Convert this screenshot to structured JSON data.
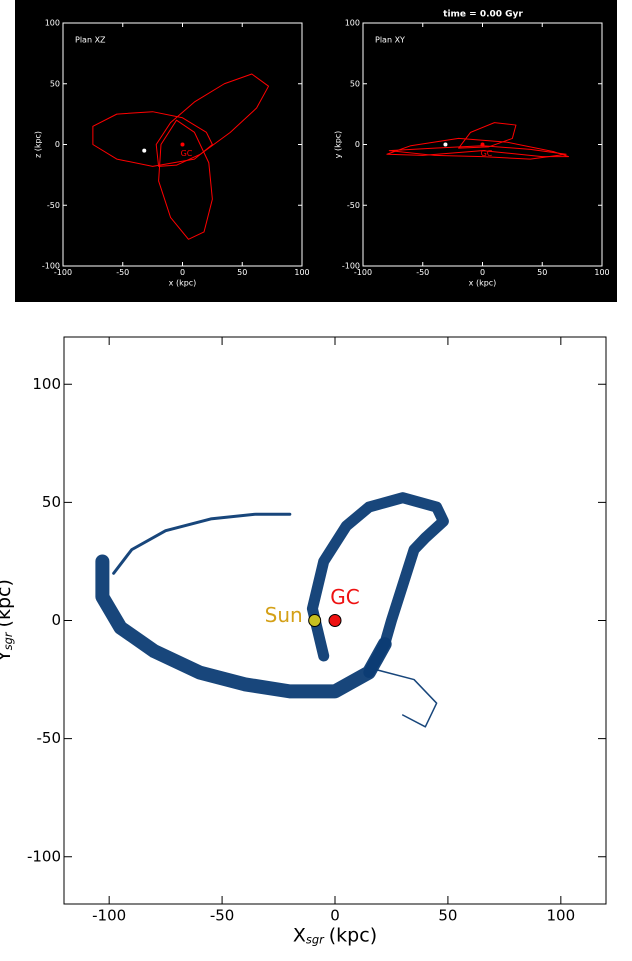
{
  "chart_data": [
    {
      "type": "line",
      "title": "Plan XZ",
      "xlabel": "x (kpc)",
      "ylabel": "z (kpc)",
      "xlim": [
        -100,
        100
      ],
      "ylim": [
        -100,
        100
      ],
      "xticks": [
        -100,
        -50,
        0,
        50,
        100
      ],
      "yticks": [
        -100,
        -50,
        0,
        50,
        100
      ],
      "series": [
        {
          "color": "#ff0000",
          "x": [
            -25,
            -55,
            -75,
            -75,
            -55,
            -25,
            0,
            20,
            25,
            10,
            -25
          ],
          "y": [
            -18,
            -12,
            0,
            15,
            25,
            27,
            22,
            10,
            0,
            -12,
            -18
          ]
        },
        {
          "color": "#ff0000",
          "x": [
            -20,
            -22,
            -10,
            10,
            35,
            58,
            72,
            62,
            40,
            15,
            -5,
            -20
          ],
          "y": [
            -18,
            0,
            18,
            35,
            50,
            58,
            48,
            30,
            10,
            -8,
            -17,
            -18
          ]
        },
        {
          "color": "#ff0000",
          "x": [
            -18,
            -20,
            -10,
            5,
            18,
            25,
            22,
            10,
            -5,
            -18
          ],
          "y": [
            0,
            -30,
            -60,
            -78,
            -72,
            -45,
            -15,
            10,
            20,
            0
          ]
        }
      ],
      "markers": [
        {
          "x": -32,
          "y": -5,
          "color": "#ffffff"
        },
        {
          "name": "GC",
          "x": 0,
          "y": 0,
          "color": "#ff0000"
        }
      ]
    },
    {
      "type": "line",
      "title": "Plan XY",
      "annotation": "time = 0.00 Gyr",
      "xlabel": "x (kpc)",
      "ylabel": "y (kpc)",
      "xlim": [
        -100,
        100
      ],
      "ylim": [
        -100,
        100
      ],
      "xticks": [
        -100,
        -50,
        0,
        50,
        100
      ],
      "yticks": [
        -100,
        -50,
        0,
        50,
        100
      ],
      "series": [
        {
          "color": "#ff0000",
          "x": [
            -80,
            -60,
            -20,
            20,
            60,
            72,
            50,
            0,
            -50,
            -80
          ],
          "y": [
            -8,
            -1,
            5,
            2,
            -6,
            -10,
            -10,
            -5,
            -9,
            -8
          ]
        },
        {
          "color": "#ff0000",
          "x": [
            -78,
            -40,
            0,
            40,
            70,
            40,
            0,
            -40,
            -78
          ],
          "y": [
            -5,
            -3,
            -1,
            -4,
            -8,
            -12,
            -10,
            -9,
            -5
          ]
        },
        {
          "color": "#ff0000",
          "x": [
            -20,
            -10,
            10,
            28,
            25,
            5,
            -20
          ],
          "y": [
            -3,
            10,
            18,
            16,
            5,
            -2,
            -3
          ]
        }
      ],
      "markers": [
        {
          "x": -31,
          "y": 0,
          "color": "#ffffff"
        },
        {
          "name": "GC",
          "x": 0,
          "y": 0,
          "color": "#ff0000"
        }
      ]
    },
    {
      "type": "scatter",
      "xlabel": [
        "X",
        "sgr",
        "(kpc)"
      ],
      "ylabel": [
        "Y",
        "sgr",
        "(kpc)"
      ],
      "xlim": [
        -120,
        120
      ],
      "ylim": [
        -120,
        120
      ],
      "xticks": [
        -100,
        -50,
        0,
        50,
        100
      ],
      "yticks": [
        -100,
        -50,
        0,
        50,
        100
      ],
      "series": [
        {
          "color": "#0c3c74",
          "width": 14,
          "x": [
            -103,
            -103,
            -95,
            -80,
            -60,
            -40,
            -20,
            0,
            15,
            22
          ],
          "y": [
            25,
            10,
            -3,
            -13,
            -22,
            -27,
            -30,
            -30,
            -22,
            -10
          ]
        },
        {
          "color": "#0c3c74",
          "width": 3,
          "x": [
            -98,
            -90,
            -75,
            -55,
            -35,
            -20
          ],
          "y": [
            20,
            30,
            38,
            43,
            45,
            45
          ]
        },
        {
          "color": "#0c3c74",
          "width": 11,
          "x": [
            -5,
            -10,
            -5,
            5,
            15,
            30,
            45,
            48,
            40,
            35,
            30,
            25,
            22,
            15
          ],
          "y": [
            -15,
            5,
            25,
            40,
            48,
            52,
            48,
            42,
            35,
            30,
            15,
            0,
            -10,
            -22
          ]
        },
        {
          "color": "#0c3c74",
          "width": 1.5,
          "x": [
            15,
            35,
            45,
            40,
            30
          ],
          "y": [
            -20,
            -25,
            -35,
            -45,
            -40
          ]
        }
      ],
      "markers": [
        {
          "name": "Sun",
          "x": -9,
          "y": 0,
          "color": "#c8c020",
          "label_color": "#d4a017"
        },
        {
          "name": "GC",
          "x": 0,
          "y": 0,
          "color": "#ee1111",
          "label_color": "#ee1111"
        }
      ]
    }
  ]
}
